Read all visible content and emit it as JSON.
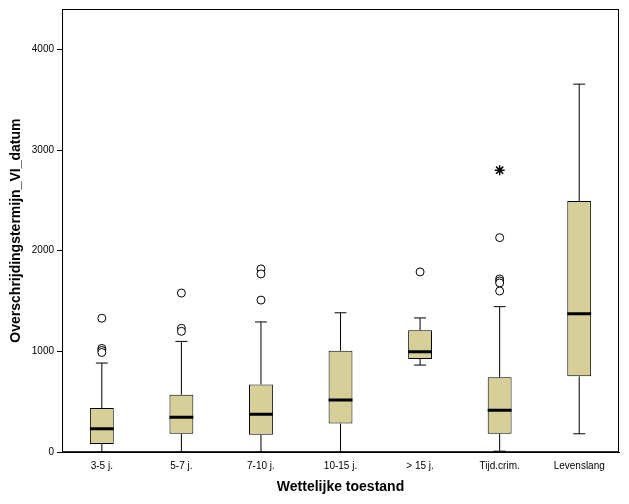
{
  "chart_data": {
    "type": "boxplot",
    "x_label": "Wettelijke toestand",
    "y_label": "Overschrijdingstermijn_VI_datum",
    "categories": [
      "3-5 j.",
      "5-7 j.",
      "7-10 j.",
      "10-15 j.",
      "> 15 j.",
      "Tijd.crim.",
      "Levenslang"
    ],
    "color": "#d6cf98",
    "boxes": [
      {
        "min": 0,
        "q1": 81,
        "median": 234,
        "q3": 438,
        "max": 885
      },
      {
        "min": 0,
        "q1": 183,
        "median": 346,
        "q3": 570,
        "max": 1100
      },
      {
        "min": 0,
        "q1": 173,
        "median": 377,
        "q3": 672,
        "max": 1293
      },
      {
        "min": 0,
        "q1": 285,
        "median": 519,
        "q3": 1008,
        "max": 1384
      },
      {
        "min": 865,
        "q1": 926,
        "median": 997,
        "q3": 1211,
        "max": 1333
      },
      {
        "min": 10,
        "q1": 183,
        "median": 417,
        "q3": 743,
        "max": 1445
      },
      {
        "min": 183,
        "q1": 753,
        "median": 1374,
        "q3": 2494,
        "max": 3654
      }
    ],
    "outliers": [
      [
        1330,
        1030,
        1010,
        990
      ],
      [
        1580,
        1230,
        1200
      ],
      [
        1820,
        1770,
        1510
      ],
      [],
      [
        1790
      ],
      [
        2130,
        1720,
        1700,
        1680,
        1600
      ],
      []
    ],
    "extremes": [
      [],
      [],
      [],
      [],
      [],
      [
        2800
      ],
      []
    ],
    "ylim": [
      0,
      4400
    ],
    "yticks": [
      0,
      1000,
      2000,
      3000,
      4000
    ],
    "grid": false
  }
}
